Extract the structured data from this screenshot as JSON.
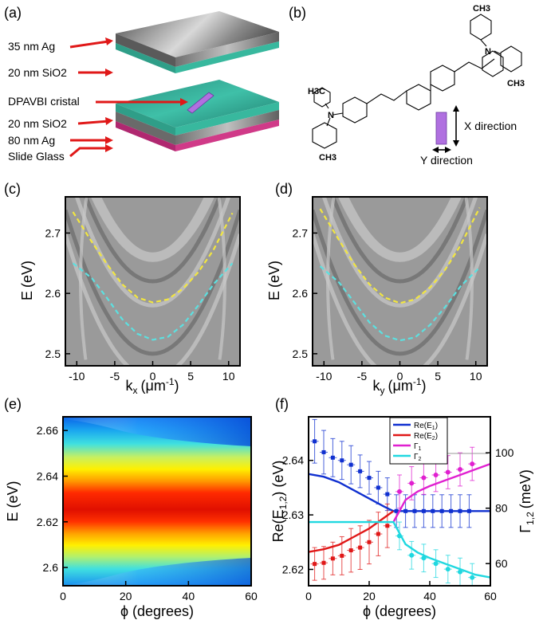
{
  "panels": {
    "a": {
      "label": "(a)",
      "layers": {
        "ag35": "35 nm Ag",
        "sio2_top": "20 nm SiO2",
        "crystal": "DPAVBI cristal",
        "sio2_bottom": "20 nm SiO2",
        "ag80": "80 nm Ag",
        "glass": "Slide Glass"
      }
    },
    "b": {
      "label": "(b)",
      "groups": {
        "ch3_top": "CH3",
        "ch3_right": "CH3",
        "h3c_left": "H3C",
        "ch3_bottom": "CH3",
        "n_left": "N",
        "n_right": "N"
      },
      "x_direction": "X direction",
      "y_direction": "Y direction"
    },
    "c": {
      "label": "(c)",
      "ylabel_main": "E",
      "ylabel_unit": "(eV)",
      "xlabel_main": "k",
      "xlabel_sub": "x",
      "xlabel_unit": "(μm",
      "xlabel_sup": "-1",
      "xlabel_close": ")",
      "yticks": [
        "2.7",
        "2.6",
        "2.5"
      ],
      "xticks": [
        "-10",
        "-5",
        "0",
        "5",
        "10"
      ]
    },
    "d": {
      "label": "(d)",
      "ylabel_main": "E",
      "ylabel_unit": "(eV)",
      "xlabel_main": "k",
      "xlabel_sub": "y",
      "xlabel_unit": "(μm",
      "xlabel_sup": "-1",
      "xlabel_close": ")",
      "yticks": [
        "2.7",
        "2.6",
        "2.5"
      ],
      "xticks": [
        "-10",
        "-5",
        "0",
        "5",
        "10"
      ]
    },
    "e": {
      "label": "(e)",
      "ylabel": "E (eV)",
      "xlabel": "ϕ (degrees)",
      "yticks": [
        "2.66",
        "2.64",
        "2.62",
        "2.6"
      ],
      "xticks": [
        "0",
        "20",
        "40",
        "60"
      ]
    },
    "f": {
      "label": "(f)",
      "ylabel_left_main": "Re(E",
      "ylabel_left_sub": "1,2",
      "ylabel_left_close": ") (eV)",
      "ylabel_right_main": "Γ",
      "ylabel_right_sub": "1,2",
      "ylabel_right_unit": "(meV)",
      "xlabel": "ϕ (degrees)",
      "yticks_left": [
        "2.64",
        "2.63",
        "2.62"
      ],
      "yticks_right": [
        "100",
        "80",
        "60"
      ],
      "xticks": [
        "0",
        "20",
        "40",
        "60"
      ],
      "legend": [
        {
          "main": "Re(E",
          "sub": "1",
          "close": ")",
          "color": "#1030d0"
        },
        {
          "main": "Re(E",
          "sub": "2",
          "close": ")",
          "color": "#e01818"
        },
        {
          "main": "Γ",
          "sub": "1",
          "close": "",
          "color": "#e020d0"
        },
        {
          "main": "Γ",
          "sub": "2",
          "close": "",
          "color": "#20d8e0"
        }
      ]
    }
  },
  "chart_data": [
    {
      "panel": "c",
      "type": "line",
      "xlabel": "k_x (μm^-1)",
      "ylabel": "E (eV)",
      "xlim": [
        -11.5,
        11.5
      ],
      "ylim": [
        2.48,
        2.76
      ],
      "series": [
        {
          "name": "upper polariton (yellow dashed)",
          "color": "#f2e640",
          "x": [
            -10.5,
            -8,
            -6,
            -4,
            -2,
            0,
            2,
            4,
            6,
            8,
            10.5
          ],
          "y": [
            2.735,
            2.685,
            2.648,
            2.615,
            2.593,
            2.585,
            2.59,
            2.608,
            2.635,
            2.672,
            2.733
          ]
        },
        {
          "name": "lower polariton (cyan dashed)",
          "color": "#5ce0e0",
          "x": [
            -10.5,
            -8,
            -6,
            -4,
            -2,
            0,
            2,
            4,
            6,
            8,
            10.5
          ],
          "y": [
            2.65,
            2.625,
            2.592,
            2.557,
            2.533,
            2.523,
            2.528,
            2.548,
            2.58,
            2.615,
            2.65
          ]
        }
      ]
    },
    {
      "panel": "d",
      "type": "line",
      "xlabel": "k_y (μm^-1)",
      "ylabel": "E (eV)",
      "xlim": [
        -11.5,
        11.5
      ],
      "ylim": [
        2.48,
        2.76
      ],
      "series": [
        {
          "name": "upper polariton (yellow dashed)",
          "color": "#f2e640",
          "x": [
            -10.5,
            -8,
            -6,
            -4,
            -2,
            0,
            2,
            4,
            6,
            8,
            10.5
          ],
          "y": [
            2.74,
            2.688,
            2.648,
            2.615,
            2.593,
            2.584,
            2.59,
            2.61,
            2.64,
            2.68,
            2.742
          ]
        },
        {
          "name": "lower polariton (cyan dashed)",
          "color": "#5ce0e0",
          "x": [
            -10.5,
            -8,
            -6,
            -4,
            -2,
            0,
            2,
            4,
            6,
            8,
            10.5
          ],
          "y": [
            2.645,
            2.618,
            2.585,
            2.552,
            2.53,
            2.522,
            2.527,
            2.548,
            2.578,
            2.612,
            2.643
          ]
        }
      ]
    },
    {
      "panel": "e",
      "type": "heatmap",
      "xlabel": "ϕ (degrees)",
      "ylabel": "E (eV)",
      "xlim": [
        0,
        60
      ],
      "ylim": [
        2.592,
        2.666
      ],
      "center": 2.628,
      "colormap": "jet"
    },
    {
      "panel": "f",
      "type": "scatter",
      "xlabel": "ϕ (degrees)",
      "xlim": [
        0,
        60
      ],
      "ylim_left": [
        2.617,
        2.648
      ],
      "ylim_right": [
        52,
        113
      ],
      "series": [
        {
          "name": "Re(E1) data",
          "axis": "left",
          "color": "#1030d0",
          "x": [
            2,
            5,
            8,
            11,
            14,
            17,
            20,
            23,
            26
          ],
          "y": [
            2.6435,
            2.6415,
            2.6405,
            2.64,
            2.6392,
            2.638,
            2.6368,
            2.635,
            2.6338
          ],
          "err": [
            0.004,
            0.004,
            0.0035,
            0.0035,
            0.0035,
            0.003,
            0.003,
            0.003,
            0.003
          ]
        },
        {
          "name": "Re(E2) data",
          "axis": "left",
          "color": "#e01818",
          "x": [
            2,
            5,
            8,
            11,
            14,
            17,
            20,
            23,
            26
          ],
          "y": [
            2.621,
            2.6212,
            2.622,
            2.6225,
            2.6235,
            2.624,
            2.625,
            2.6265,
            2.628
          ],
          "err": [
            0.003,
            0.003,
            0.003,
            0.0035,
            0.004,
            0.004,
            0.004,
            0.004,
            0.004
          ]
        },
        {
          "name": "merged data",
          "axis": "left",
          "color": "#1030d0",
          "x": [
            29,
            32,
            35,
            38,
            41,
            44,
            47,
            50,
            53
          ],
          "y": [
            2.6307,
            2.6307,
            2.6307,
            2.6307,
            2.6307,
            2.6307,
            2.6307,
            2.6307,
            2.6307
          ],
          "err": [
            0.003,
            0.003,
            0.003,
            0.003,
            0.003,
            0.003,
            0.003,
            0.003,
            0.003
          ]
        },
        {
          "name": "Γ1 data",
          "axis": "right",
          "color": "#e020d0",
          "x": [
            30,
            34,
            38,
            42,
            46,
            50,
            54
          ],
          "y": [
            86,
            89,
            91,
            92,
            93,
            94,
            96
          ],
          "err": [
            6,
            6,
            6,
            6,
            6,
            6,
            6
          ]
        },
        {
          "name": "Γ2 data",
          "axis": "right",
          "color": "#20d8e0",
          "x": [
            30,
            34,
            38,
            42,
            46,
            50,
            54
          ],
          "y": [
            70,
            63,
            62,
            60,
            58,
            57,
            55
          ],
          "err": [
            5,
            5,
            5,
            5,
            5,
            5,
            5
          ]
        },
        {
          "name": "Re(E1) fit",
          "axis": "left",
          "color": "#1030d0",
          "kind": "line",
          "x": [
            0,
            5,
            10,
            15,
            20,
            25,
            28
          ],
          "y": [
            2.6375,
            2.637,
            2.636,
            2.6345,
            2.633,
            2.6315,
            2.6307
          ]
        },
        {
          "name": "Re(E2) fit",
          "axis": "left",
          "color": "#e01818",
          "kind": "line",
          "x": [
            0,
            5,
            10,
            15,
            20,
            25,
            28
          ],
          "y": [
            2.6232,
            2.6237,
            2.6245,
            2.626,
            2.6275,
            2.6295,
            2.6307
          ]
        },
        {
          "name": "merged fit",
          "axis": "left",
          "color": "#1030d0",
          "kind": "line",
          "x": [
            28,
            60
          ],
          "y": [
            2.6307,
            2.6307
          ]
        },
        {
          "name": "Γ1 fit",
          "axis": "right",
          "color": "#e020d0",
          "kind": "line",
          "x": [
            28,
            32,
            36,
            40,
            45,
            50,
            55,
            60
          ],
          "y": [
            75,
            83,
            86,
            88,
            90,
            92,
            94,
            96
          ]
        },
        {
          "name": "Γ2 fit",
          "axis": "right",
          "color": "#20d8e0",
          "kind": "line",
          "x": [
            0,
            28,
            32,
            36,
            40,
            45,
            50,
            55,
            60
          ],
          "y": [
            75,
            75,
            67,
            64,
            62,
            60,
            58,
            56,
            55
          ]
        }
      ]
    }
  ]
}
